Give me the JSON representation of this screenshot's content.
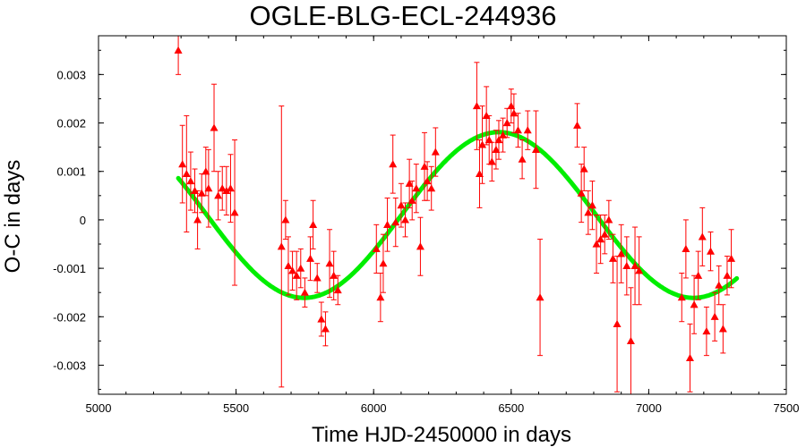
{
  "chart_data": {
    "type": "scatter",
    "title": "OGLE-BLG-ECL-244936",
    "xlabel": "Time HJD-2450000 in days",
    "ylabel": "O-C in days",
    "xlim": [
      5000,
      7500
    ],
    "ylim": [
      -0.0036,
      0.0038
    ],
    "x_ticks": [
      {
        "value": 5000,
        "label": "5000"
      },
      {
        "value": 5500,
        "label": "5500"
      },
      {
        "value": 6000,
        "label": "6000"
      },
      {
        "value": 6500,
        "label": "6500"
      },
      {
        "value": 7000,
        "label": "7000"
      },
      {
        "value": 7500,
        "label": "7500"
      }
    ],
    "y_ticks": [
      {
        "value": 0.003,
        "label": "0.003"
      },
      {
        "value": 0.002,
        "label": "0.002"
      },
      {
        "value": 0.001,
        "label": "0.001"
      },
      {
        "value": 0,
        "label": "0"
      },
      {
        "value": -0.001,
        "label": "-0.001"
      },
      {
        "value": -0.002,
        "label": "-0.002"
      },
      {
        "value": -0.003,
        "label": "-0.003"
      }
    ],
    "grid": false,
    "series": [
      {
        "kind": "points_with_errorbars",
        "color": "#ff0000",
        "marker": "triangle",
        "points": [
          {
            "x": 5290,
            "y": 0.0035,
            "err": 0.0005
          },
          {
            "x": 5305,
            "y": 0.00115,
            "err": 0.0008
          },
          {
            "x": 5320,
            "y": 0.00095,
            "err": 0.0012
          },
          {
            "x": 5335,
            "y": 0.0008,
            "err": 0.0006
          },
          {
            "x": 5350,
            "y": 0.0006,
            "err": 0.00045
          },
          {
            "x": 5360,
            "y": 0.0,
            "err": 0.0006
          },
          {
            "x": 5375,
            "y": 0.00055,
            "err": 0.0004
          },
          {
            "x": 5390,
            "y": 0.001,
            "err": 0.0005
          },
          {
            "x": 5400,
            "y": 0.00065,
            "err": 0.0008
          },
          {
            "x": 5420,
            "y": 0.0019,
            "err": 0.0009
          },
          {
            "x": 5435,
            "y": 0.0005,
            "err": 0.0005
          },
          {
            "x": 5450,
            "y": 0.00065,
            "err": 0.00045
          },
          {
            "x": 5465,
            "y": 0.0006,
            "err": 0.0005
          },
          {
            "x": 5480,
            "y": 0.00065,
            "err": 0.0007
          },
          {
            "x": 5495,
            "y": 0.00015,
            "err": 0.0015
          },
          {
            "x": 5665,
            "y": -0.00055,
            "err": 0.0029
          },
          {
            "x": 5680,
            "y": 0.0,
            "err": 0.0004
          },
          {
            "x": 5690,
            "y": -0.00095,
            "err": 0.0006
          },
          {
            "x": 5705,
            "y": -0.00105,
            "err": 0.0004
          },
          {
            "x": 5720,
            "y": -0.00115,
            "err": 0.0005
          },
          {
            "x": 5735,
            "y": -0.001,
            "err": 0.0004
          },
          {
            "x": 5750,
            "y": -0.0015,
            "err": 0.0003
          },
          {
            "x": 5770,
            "y": -0.0008,
            "err": 0.00045
          },
          {
            "x": 5780,
            "y": -0.0001,
            "err": 0.0005
          },
          {
            "x": 5795,
            "y": -0.0012,
            "err": 0.0003
          },
          {
            "x": 5810,
            "y": -0.00205,
            "err": 0.00035
          },
          {
            "x": 5825,
            "y": -0.00225,
            "err": 0.00035
          },
          {
            "x": 5840,
            "y": -0.0009,
            "err": 0.0007
          },
          {
            "x": 5855,
            "y": -0.00115,
            "err": 0.0005
          },
          {
            "x": 5870,
            "y": -0.00145,
            "err": 0.0003
          },
          {
            "x": 6010,
            "y": -0.0006,
            "err": 0.0005
          },
          {
            "x": 6025,
            "y": -0.0016,
            "err": 0.0005
          },
          {
            "x": 6035,
            "y": -0.0009,
            "err": 0.0006
          },
          {
            "x": 6050,
            "y": -0.0001,
            "err": 0.00055
          },
          {
            "x": 6070,
            "y": 0.00115,
            "err": 0.0006
          },
          {
            "x": 6080,
            "y": -5e-05,
            "err": 0.0005
          },
          {
            "x": 6100,
            "y": 0.0003,
            "err": 0.00045
          },
          {
            "x": 6115,
            "y": 0.0,
            "err": 0.00035
          },
          {
            "x": 6130,
            "y": 0.00075,
            "err": 0.0005
          },
          {
            "x": 6140,
            "y": 0.0004,
            "err": 0.0004
          },
          {
            "x": 6155,
            "y": 0.00065,
            "err": 0.0005
          },
          {
            "x": 6170,
            "y": -0.00055,
            "err": 0.0006
          },
          {
            "x": 6185,
            "y": 0.0011,
            "err": 0.0007
          },
          {
            "x": 6195,
            "y": 0.0008,
            "err": 0.0004
          },
          {
            "x": 6210,
            "y": 0.00065,
            "err": 0.00045
          },
          {
            "x": 6225,
            "y": 0.0014,
            "err": 0.0005
          },
          {
            "x": 6375,
            "y": 0.00235,
            "err": 0.0009
          },
          {
            "x": 6385,
            "y": 0.00095,
            "err": 0.0007
          },
          {
            "x": 6395,
            "y": 0.00155,
            "err": 0.0008
          },
          {
            "x": 6410,
            "y": 0.00215,
            "err": 0.0006
          },
          {
            "x": 6420,
            "y": 0.00165,
            "err": 0.0005
          },
          {
            "x": 6430,
            "y": 0.0012,
            "err": 0.0004
          },
          {
            "x": 6445,
            "y": 0.00145,
            "err": 0.0004
          },
          {
            "x": 6455,
            "y": 0.00165,
            "err": 0.0004
          },
          {
            "x": 6470,
            "y": 0.00175,
            "err": 0.00035
          },
          {
            "x": 6485,
            "y": 0.002,
            "err": 0.0003
          },
          {
            "x": 6500,
            "y": 0.00235,
            "err": 0.00035
          },
          {
            "x": 6510,
            "y": 0.0022,
            "err": 0.0004
          },
          {
            "x": 6525,
            "y": 0.00185,
            "err": 0.00035
          },
          {
            "x": 6540,
            "y": 0.00125,
            "err": 0.0004
          },
          {
            "x": 6560,
            "y": 0.00185,
            "err": 0.0004
          },
          {
            "x": 6590,
            "y": 0.00145,
            "err": 0.0008
          },
          {
            "x": 6605,
            "y": -0.0016,
            "err": 0.0012
          },
          {
            "x": 6740,
            "y": 0.00195,
            "err": 0.00045
          },
          {
            "x": 6755,
            "y": 0.00055,
            "err": 0.0006
          },
          {
            "x": 6765,
            "y": 0.00105,
            "err": 0.00045
          },
          {
            "x": 6780,
            "y": 0.00015,
            "err": 0.00045
          },
          {
            "x": 6795,
            "y": 0.0003,
            "err": 0.0005
          },
          {
            "x": 6810,
            "y": -0.0005,
            "err": 0.0006
          },
          {
            "x": 6825,
            "y": -0.0004,
            "err": 0.0005
          },
          {
            "x": 6840,
            "y": -0.0003,
            "err": 0.0004
          },
          {
            "x": 6855,
            "y": 0.0,
            "err": 0.0004
          },
          {
            "x": 6870,
            "y": -0.0008,
            "err": 0.0005
          },
          {
            "x": 6885,
            "y": -0.00215,
            "err": 0.0014
          },
          {
            "x": 6900,
            "y": -0.0007,
            "err": 0.0006
          },
          {
            "x": 6920,
            "y": -0.00095,
            "err": 0.0006
          },
          {
            "x": 6935,
            "y": -0.0025,
            "err": 0.0011
          },
          {
            "x": 6950,
            "y": -0.00095,
            "err": 0.0008
          },
          {
            "x": 6965,
            "y": -0.00105,
            "err": 0.0007
          },
          {
            "x": 7120,
            "y": -0.0016,
            "err": 0.0005
          },
          {
            "x": 7135,
            "y": -0.0006,
            "err": 0.0006
          },
          {
            "x": 7150,
            "y": -0.00285,
            "err": 0.0007
          },
          {
            "x": 7165,
            "y": -0.00175,
            "err": 0.0006
          },
          {
            "x": 7180,
            "y": -0.00115,
            "err": 0.0005
          },
          {
            "x": 7195,
            "y": -0.00035,
            "err": 0.0006
          },
          {
            "x": 7210,
            "y": -0.0023,
            "err": 0.0005
          },
          {
            "x": 7225,
            "y": -0.00065,
            "err": 0.0004
          },
          {
            "x": 7240,
            "y": -0.002,
            "err": 0.0005
          },
          {
            "x": 7255,
            "y": -0.00135,
            "err": 0.0004
          },
          {
            "x": 7270,
            "y": -0.00225,
            "err": 0.0005
          },
          {
            "x": 7285,
            "y": -0.00115,
            "err": 0.0004
          },
          {
            "x": 7300,
            "y": -0.0008,
            "err": 0.0006
          }
        ]
      },
      {
        "kind": "fit_curve",
        "color": "#00ee00",
        "model": "sinusoid",
        "offset": 0.0001,
        "amplitude": 0.00171,
        "period": 1415,
        "peak_at": 6455,
        "x_range": [
          5290,
          7320
        ]
      }
    ]
  }
}
